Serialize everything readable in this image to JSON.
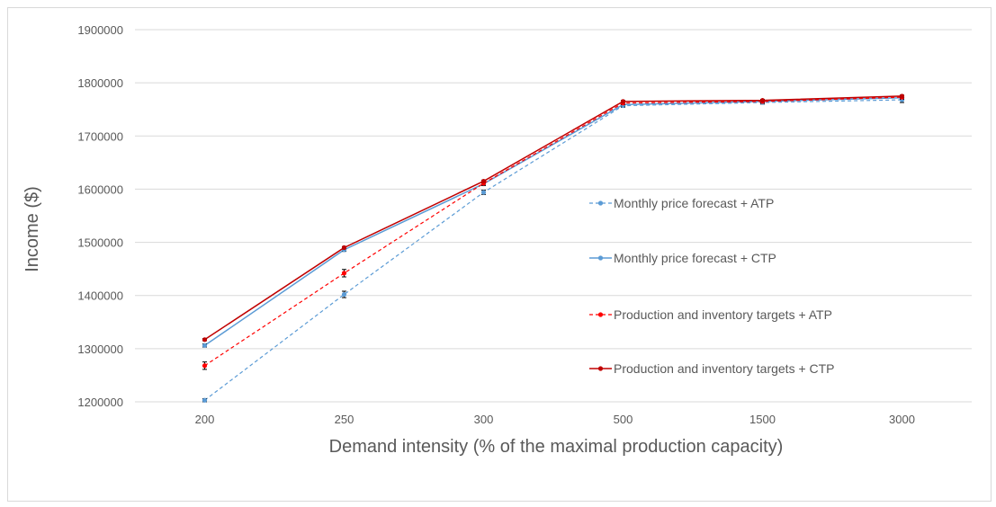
{
  "chart_data": {
    "type": "line",
    "title": "",
    "xlabel": "Demand intensity (% of the maximal production capacity)",
    "ylabel": "Income ($)",
    "categories": [
      "200",
      "250",
      "300",
      "500",
      "1500",
      "3000"
    ],
    "ylim": [
      1200000,
      1900000
    ],
    "yticks": [
      "1200000",
      "1300000",
      "1400000",
      "1500000",
      "1600000",
      "1700000",
      "1800000",
      "1900000"
    ],
    "grid": true,
    "legend_position": "right",
    "series": [
      {
        "name": "Monthly price forecast + ATP",
        "color": "#5b9bd5",
        "dashed": true,
        "values": [
          1203000,
          1402000,
          1594000,
          1757000,
          1763000,
          1768000
        ],
        "errors": [
          3000,
          6000,
          4000,
          3000,
          3000,
          5000
        ]
      },
      {
        "name": "Monthly price forecast + CTP",
        "color": "#5b9bd5",
        "dashed": false,
        "values": [
          1306000,
          1486000,
          1610000,
          1759000,
          1765000,
          1772000
        ],
        "errors": [
          3000,
          3000,
          3000,
          3000,
          3000,
          3000
        ]
      },
      {
        "name": "Production and inventory targets + ATP",
        "color": "#ff0000",
        "dashed": true,
        "values": [
          1268000,
          1442000,
          1611000,
          1762000,
          1765000,
          1773000
        ],
        "errors": [
          7000,
          7000,
          4000,
          3000,
          3000,
          3000
        ]
      },
      {
        "name": "Production and inventory targets + CTP",
        "color": "#c00000",
        "dashed": false,
        "values": [
          1317000,
          1490000,
          1615000,
          1765000,
          1767000,
          1775000
        ],
        "errors": [
          2000,
          2000,
          2000,
          2000,
          2000,
          2000
        ]
      }
    ]
  }
}
